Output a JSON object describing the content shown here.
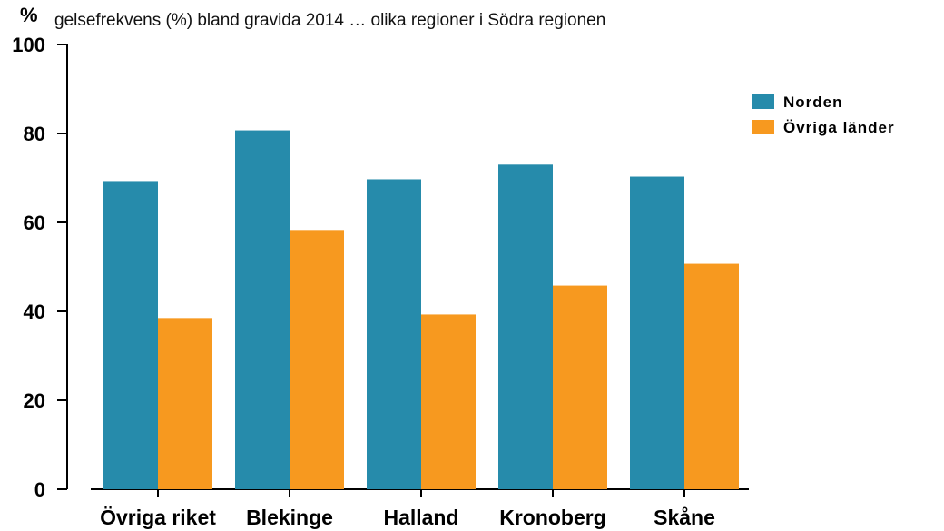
{
  "chart_data": {
    "type": "bar",
    "title": "gelsefrekvens (%) bland gravida 2014 … olika regioner i Södra regionen",
    "ylabel": "%",
    "xlabel": "",
    "categories": [
      "Övriga riket",
      "Blekinge",
      "Halland",
      "Kronoberg",
      "Skåne"
    ],
    "series": [
      {
        "name": "Norden",
        "color": "#268bab",
        "values": [
          69.3,
          80.7,
          69.7,
          73.0,
          70.3
        ]
      },
      {
        "name": "Övriga länder",
        "color": "#f7991f",
        "values": [
          38.5,
          58.3,
          39.3,
          45.8,
          50.7
        ]
      }
    ],
    "ylim": [
      0,
      100
    ],
    "yticks": [
      0,
      20,
      40,
      60,
      80,
      100
    ],
    "grid": false,
    "legend_position": "top-right"
  }
}
